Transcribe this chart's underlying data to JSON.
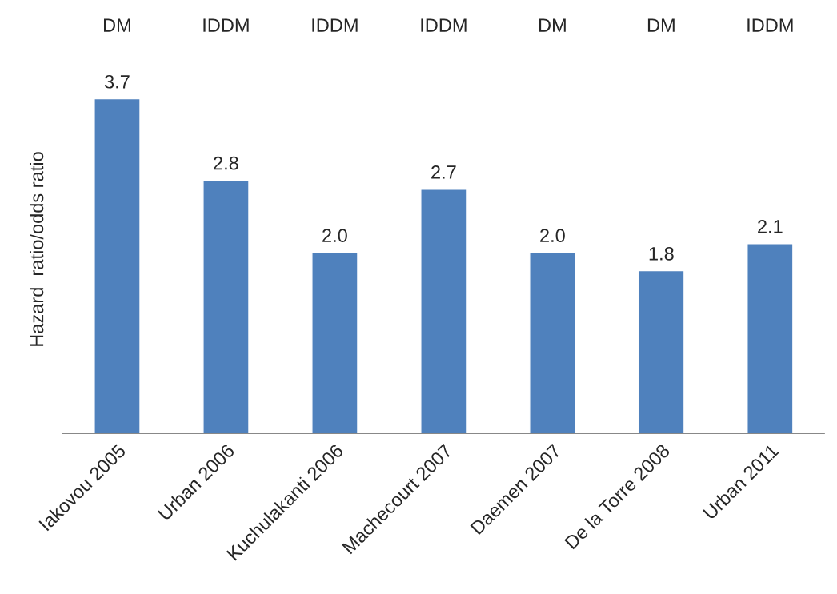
{
  "chart_data": {
    "type": "bar",
    "ylabel": "Hazard  ratio/odds ratio",
    "categories": [
      "Iakovou 2005",
      "Urban 2006",
      "Kuchulakanti 2006",
      "Machecourt 2007",
      "Daemen 2007",
      "De la Torre 2008",
      "Urban 2011"
    ],
    "values": [
      3.7,
      2.8,
      2.0,
      2.7,
      2.0,
      1.8,
      2.1
    ],
    "color": "#4f81bd",
    "data_labels": true,
    "value_labels": [
      "3.7",
      "2.8",
      "2.0",
      "2.7",
      "2.0",
      "1.8",
      "2.1"
    ],
    "annotations": [
      "DM",
      "IDDM",
      "IDDM",
      "IDDM",
      "DM",
      "DM",
      "IDDM"
    ]
  }
}
